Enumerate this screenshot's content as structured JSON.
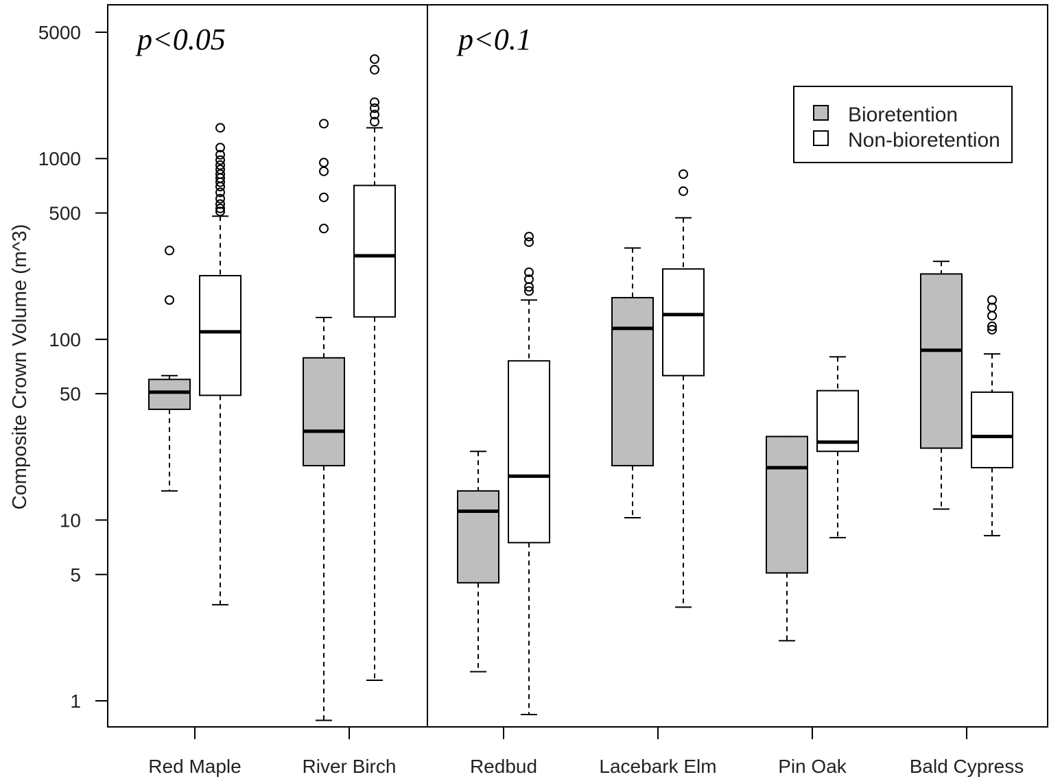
{
  "chart_data": {
    "type": "box",
    "title": "",
    "xlabel": "",
    "ylabel": "Composite Crown Volume (m^3)",
    "y_scale": "log",
    "ylim": [
      0.8,
      6000
    ],
    "y_ticks": [
      1,
      5,
      10,
      50,
      100,
      500,
      1000,
      5000
    ],
    "y_tick_labels": [
      "1",
      "5",
      "10",
      "50",
      "100",
      "500",
      "1000",
      "5000"
    ],
    "categories": [
      "Red Maple",
      "River Birch",
      "Redbud",
      "Lacebark Elm",
      "Pin Oak",
      "Bald Cypress"
    ],
    "legend": {
      "position": "top-right",
      "entries": [
        {
          "label": "Bioretention",
          "color": "#bebebe"
        },
        {
          "label": "Non-bioretention",
          "color": "#ffffff"
        }
      ]
    },
    "annotations": [
      {
        "text": "p<0.05",
        "region": "left panel"
      },
      {
        "text": "p<0.1",
        "region": "right panel"
      }
    ],
    "divider_after_category": "River Birch",
    "series": [
      {
        "name": "Bioretention",
        "color": "#bebebe",
        "boxes": [
          {
            "category": "Red Maple",
            "whisker_low": 14.5,
            "q1": 41,
            "median": 51,
            "q3": 60,
            "whisker_high": 63,
            "outliers": [
              310,
              165
            ]
          },
          {
            "category": "River Birch",
            "whisker_low": 0.78,
            "q1": 20,
            "median": 31,
            "q3": 79,
            "whisker_high": 132,
            "outliers": [
              1560,
              950,
              850,
              610,
              410
            ]
          },
          {
            "category": "Redbud",
            "whisker_low": 1.45,
            "q1": 4.5,
            "median": 11.2,
            "q3": 14.5,
            "whisker_high": 24,
            "outliers": []
          },
          {
            "category": "Lacebark Elm",
            "whisker_low": 10.3,
            "q1": 20,
            "median": 115,
            "q3": 170,
            "whisker_high": 320,
            "outliers": []
          },
          {
            "category": "Pin Oak",
            "whisker_low": 2.15,
            "q1": 5.1,
            "median": 19.5,
            "q3": 29,
            "whisker_high": 29,
            "outliers": []
          },
          {
            "category": "Bald Cypress",
            "whisker_low": 11.5,
            "q1": 25,
            "median": 87,
            "q3": 230,
            "whisker_high": 270,
            "outliers": []
          }
        ]
      },
      {
        "name": "Non-bioretention",
        "color": "#ffffff",
        "boxes": [
          {
            "category": "Red Maple",
            "whisker_low": 3.4,
            "q1": 49,
            "median": 110,
            "q3": 225,
            "whisker_high": 480,
            "outliers": [
              1480,
              1150,
              1050,
              980,
              920,
              870,
              820,
              780,
              740,
              700,
              650,
              600,
              560,
              530,
              510
            ]
          },
          {
            "category": "River Birch",
            "whisker_low": 1.3,
            "q1": 133,
            "median": 290,
            "q3": 710,
            "whisker_high": 1480,
            "outliers": [
              3550,
              3100,
              2050,
              1900,
              1750,
              1600
            ]
          },
          {
            "category": "Redbud",
            "whisker_low": 0.84,
            "q1": 7.5,
            "median": 17.5,
            "q3": 76,
            "whisker_high": 165,
            "outliers": [
              370,
              345,
              235,
              215,
              195,
              185
            ]
          },
          {
            "category": "Lacebark Elm",
            "whisker_low": 3.3,
            "q1": 63,
            "median": 137,
            "q3": 245,
            "whisker_high": 470,
            "outliers": [
              820,
              660
            ]
          },
          {
            "category": "Pin Oak",
            "whisker_low": 8,
            "q1": 24,
            "median": 27,
            "q3": 52,
            "whisker_high": 80,
            "outliers": []
          },
          {
            "category": "Bald Cypress",
            "whisker_low": 8.2,
            "q1": 19.5,
            "median": 29,
            "q3": 51,
            "whisker_high": 83,
            "outliers": [
              165,
              150,
              135,
              118,
              113
            ]
          }
        ]
      }
    ]
  }
}
